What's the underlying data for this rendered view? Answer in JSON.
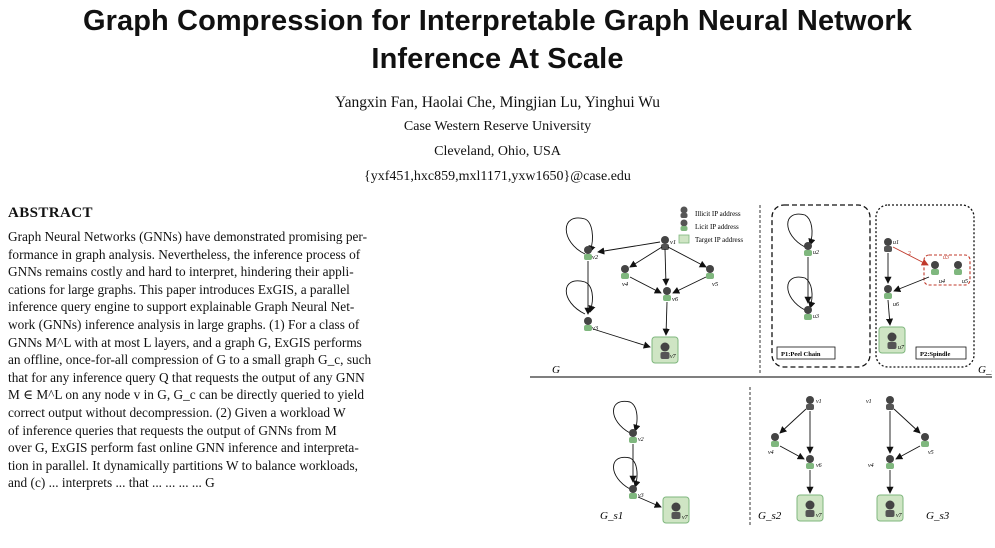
{
  "paper": {
    "title_line1": "Graph Compression for Interpretable Graph Neural Network",
    "title_line2": "Inference At Scale",
    "authors": "Yangxin Fan, Haolai Che, Mingjian Lu, Yinghui Wu",
    "affiliation": "Case Western Reserve University",
    "location": "Cleveland, Ohio, USA",
    "emails": "{yxf451,hxc859,mxl1171,yxw1650}@case.edu"
  },
  "abstract": {
    "heading": "ABSTRACT",
    "lines": [
      "Graph Neural Networks (GNNs) have demonstrated promising per-",
      "formance in graph analysis. Nevertheless, the inference process of",
      "GNNs remains costly and hard to interpret, hindering their appli-",
      "cations for large graphs. This paper introduces ExGIS, a parallel",
      "inference query engine to support explainable Graph Neural Net-",
      "work (GNNs) inference analysis in large graphs. (1) For a class of",
      "GNNs M^L with at most L layers, and a graph G, ExGIS performs",
      "an offline, once-for-all compression of G to a small graph G_c, such",
      "that for any inference query Q that requests the output of any GNN",
      "M ∈ M^L on any node v in G, G_c can be directly queried to yield",
      "correct output without decompression. (2) Given a workload W",
      "of inference queries that requests the output of GNNs from M",
      "over G, ExGIS perform fast online GNN inference and interpreta-",
      "tion in parallel. It dynamically partitions W to balance workloads,",
      "and (c) ... interprets ... that ... ... ... ... G"
    ]
  },
  "figure": {
    "legend": [
      "Illicit IP address",
      "Licit IP address",
      "Target IP address"
    ],
    "panel_labels": [
      "P1:Peel Chain",
      "P2:Spindle"
    ],
    "graph_labels": [
      "G",
      "G_c",
      "G_s1",
      "G_s2",
      "G_s3"
    ],
    "node_labels": [
      "v1",
      "v2",
      "v3",
      "v4",
      "v5",
      "v6",
      "v7",
      "u1",
      "u2",
      "u3",
      "u4",
      "u5",
      "u6",
      "u7"
    ]
  }
}
